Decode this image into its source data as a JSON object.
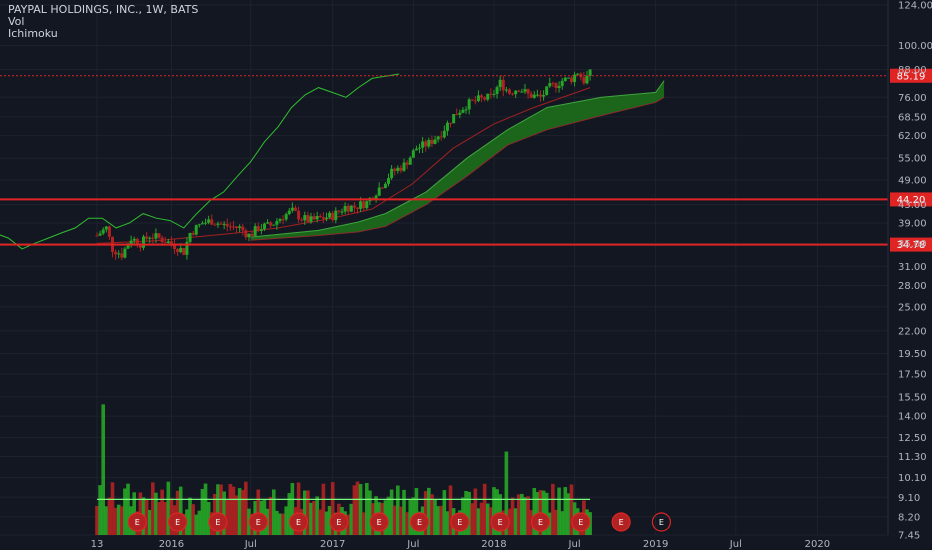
{
  "chart_data": {
    "type": "candlestick",
    "title": "PAYPAL HOLDINGS, INC., 1W, BATS",
    "indicators": [
      "Vol",
      "Ichimoku"
    ],
    "price_axis": {
      "scale": "log",
      "range": [
        7.45,
        124
      ],
      "ticks": [
        124.0,
        100.0,
        88.0,
        76.0,
        68.5,
        62.0,
        55.0,
        49.0,
        43.0,
        39.0,
        35.0,
        31.0,
        28.0,
        25.0,
        22.0,
        19.5,
        17.5,
        15.5,
        14.0,
        12.5,
        11.3,
        10.1,
        9.1,
        8.2,
        7.45
      ],
      "tick_labels": [
        "124.00",
        "100.00",
        "88.00",
        "76.00",
        "68.50",
        "62.00",
        "55.00",
        "49.00",
        "43.00",
        "39.00",
        "35.00",
        "31.00",
        "28.00",
        "25.00",
        "22.00",
        "19.50",
        "17.50",
        "15.50",
        "14.00",
        "12.50",
        "11.30",
        "10.10",
        "9.10",
        "8.20",
        "7.45"
      ]
    },
    "time_axis": {
      "range": [
        "2015-07-20",
        "2020-07-01"
      ],
      "labels": [
        {
          "date": "2015-07-20",
          "text": "13"
        },
        {
          "date": "2016-01-04",
          "text": "2016"
        },
        {
          "date": "2016-07-01",
          "text": "Jul"
        },
        {
          "date": "2017-01-02",
          "text": "2017"
        },
        {
          "date": "2017-07-03",
          "text": "Jul"
        },
        {
          "date": "2018-01-01",
          "text": "2018"
        },
        {
          "date": "2018-07-02",
          "text": "Jul"
        },
        {
          "date": "2019-01-01",
          "text": "2019"
        },
        {
          "date": "2019-07-01",
          "text": "Jul"
        },
        {
          "date": "2020-01-01",
          "text": "2020"
        }
      ]
    },
    "last_price": 85.19,
    "last_price_label": "85.19",
    "horizontal_lines": [
      {
        "value": 44.2,
        "label": "44.20"
      },
      {
        "value": 34.78,
        "label": "34.78"
      }
    ],
    "earnings_marker": "E",
    "earnings_count": 14,
    "price_path": [
      [
        "2015-07-20",
        36.5
      ],
      [
        "2015-08-10",
        38
      ],
      [
        "2015-08-24",
        34
      ],
      [
        "2015-09-14",
        33
      ],
      [
        "2015-10-05",
        36
      ],
      [
        "2015-10-26",
        35
      ],
      [
        "2015-11-16",
        36.5
      ],
      [
        "2015-12-07",
        36
      ],
      [
        "2016-01-04",
        35
      ],
      [
        "2016-02-01",
        33.5
      ],
      [
        "2016-02-15",
        37
      ],
      [
        "2016-03-14",
        39
      ],
      [
        "2016-04-04",
        39.5
      ],
      [
        "2016-05-02",
        38.5
      ],
      [
        "2016-06-06",
        38
      ],
      [
        "2016-06-27",
        36.5
      ],
      [
        "2016-07-18",
        38
      ],
      [
        "2016-08-15",
        38.5
      ],
      [
        "2016-09-12",
        40.5
      ],
      [
        "2016-10-03",
        41.5
      ],
      [
        "2016-10-24",
        40
      ],
      [
        "2016-11-14",
        39.5
      ],
      [
        "2016-12-05",
        40
      ],
      [
        "2017-01-02",
        40.5
      ],
      [
        "2017-01-30",
        42.5
      ],
      [
        "2017-02-20",
        42.5
      ],
      [
        "2017-03-20",
        43.5
      ],
      [
        "2017-04-17",
        47
      ],
      [
        "2017-05-15",
        51
      ],
      [
        "2017-06-12",
        53
      ],
      [
        "2017-07-10",
        58
      ],
      [
        "2017-08-07",
        59.5
      ],
      [
        "2017-09-04",
        63
      ],
      [
        "2017-10-02",
        69
      ],
      [
        "2017-10-30",
        73
      ],
      [
        "2017-11-27",
        75
      ],
      [
        "2017-12-25",
        76
      ],
      [
        "2018-01-15",
        82
      ],
      [
        "2018-02-05",
        78
      ],
      [
        "2018-02-26",
        80
      ],
      [
        "2018-03-19",
        77
      ],
      [
        "2018-04-16",
        76
      ],
      [
        "2018-05-07",
        80
      ],
      [
        "2018-06-04",
        83
      ],
      [
        "2018-06-25",
        84
      ],
      [
        "2018-07-09",
        87
      ],
      [
        "2018-07-23",
        83
      ],
      [
        "2018-08-06",
        86
      ]
    ],
    "kijun_line": [
      [
        "2015-07-20",
        35
      ],
      [
        "2015-12-01",
        35.5
      ],
      [
        "2016-06-01",
        37
      ],
      [
        "2016-09-01",
        38
      ],
      [
        "2017-01-01",
        40
      ],
      [
        "2017-04-01",
        42
      ],
      [
        "2017-07-01",
        48
      ],
      [
        "2017-10-01",
        58
      ],
      [
        "2018-01-01",
        66
      ],
      [
        "2018-04-01",
        72
      ],
      [
        "2018-08-06",
        80
      ]
    ],
    "lagging_span": [
      [
        "2014-12-01",
        37
      ],
      [
        "2015-01-01",
        36
      ],
      [
        "2015-02-01",
        34
      ],
      [
        "2015-03-01",
        35
      ],
      [
        "2015-04-01",
        36
      ],
      [
        "2015-05-01",
        37
      ],
      [
        "2015-06-01",
        38
      ],
      [
        "2015-07-01",
        40
      ],
      [
        "2015-08-01",
        40
      ],
      [
        "2015-09-01",
        38
      ],
      [
        "2015-10-01",
        39
      ],
      [
        "2015-11-01",
        41
      ],
      [
        "2015-12-01",
        40
      ],
      [
        "2016-01-01",
        39.5
      ],
      [
        "2016-02-01",
        38
      ],
      [
        "2016-03-01",
        41
      ],
      [
        "2016-04-01",
        44
      ],
      [
        "2016-05-01",
        46
      ],
      [
        "2016-06-01",
        50
      ],
      [
        "2016-07-01",
        54
      ],
      [
        "2016-08-01",
        60
      ],
      [
        "2016-09-01",
        65
      ],
      [
        "2016-10-01",
        72
      ],
      [
        "2016-11-01",
        77
      ],
      [
        "2016-12-01",
        80
      ],
      [
        "2017-01-01",
        78
      ],
      [
        "2017-02-01",
        76
      ],
      [
        "2017-03-01",
        80
      ],
      [
        "2017-04-01",
        84
      ],
      [
        "2017-05-01",
        85
      ],
      [
        "2017-06-01",
        86
      ]
    ],
    "ichimoku_cloud": {
      "span_a": [
        [
          "2016-07-01",
          36.2
        ],
        [
          "2016-12-01",
          37.5
        ],
        [
          "2017-03-01",
          39.2
        ],
        [
          "2017-05-01",
          41
        ],
        [
          "2017-08-01",
          46
        ],
        [
          "2017-11-01",
          55
        ],
        [
          "2018-02-01",
          64
        ],
        [
          "2018-05-01",
          72
        ],
        [
          "2018-09-01",
          76
        ],
        [
          "2019-01-01",
          78
        ],
        [
          "2019-01-20",
          83
        ]
      ],
      "span_b": [
        [
          "2016-07-01",
          35.6
        ],
        [
          "2016-12-01",
          36.5
        ],
        [
          "2017-03-01",
          37.2
        ],
        [
          "2017-05-01",
          38.3
        ],
        [
          "2017-08-01",
          43
        ],
        [
          "2017-11-01",
          50
        ],
        [
          "2018-02-01",
          59
        ],
        [
          "2018-05-01",
          64
        ],
        [
          "2018-09-01",
          69
        ],
        [
          "2019-01-01",
          74
        ],
        [
          "2019-01-20",
          76
        ]
      ]
    },
    "volume": {
      "approx_peaks": [
        {
          "date": "2015-08-03",
          "value": 14.9
        },
        {
          "date": "2018-01-29",
          "value": 11.6
        }
      ],
      "moving_average_level": 9.0
    }
  }
}
